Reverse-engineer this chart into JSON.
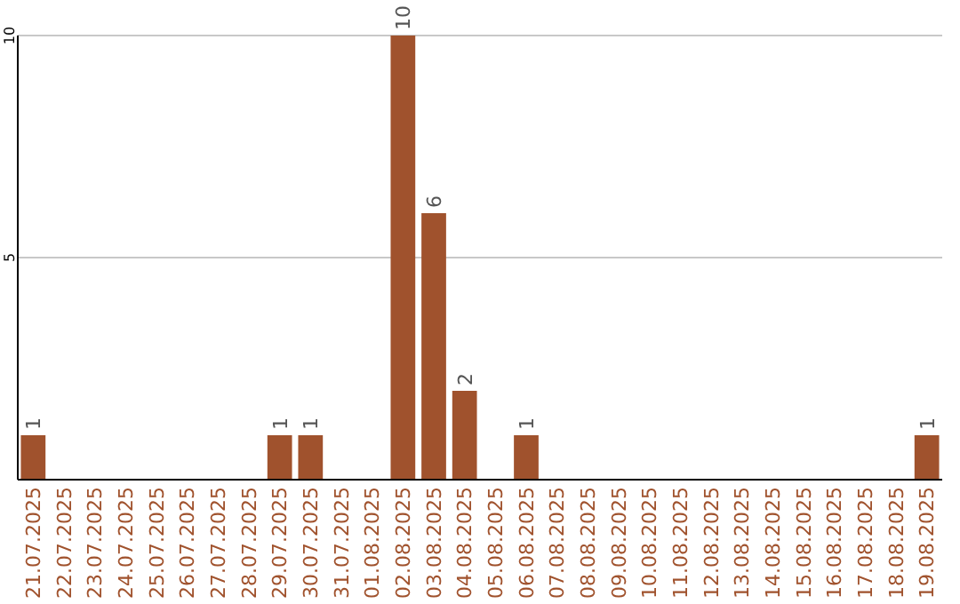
{
  "chart_data": {
    "type": "bar",
    "categories": [
      "21.07.2025",
      "22.07.2025",
      "23.07.2025",
      "24.07.2025",
      "25.07.2025",
      "26.07.2025",
      "27.07.2025",
      "28.07.2025",
      "29.07.2025",
      "30.07.2025",
      "31.07.2025",
      "01.08.2025",
      "02.08.2025",
      "03.08.2025",
      "04.08.2025",
      "05.08.2025",
      "06.08.2025",
      "07.08.2025",
      "08.08.2025",
      "09.08.2025",
      "10.08.2025",
      "11.08.2025",
      "12.08.2025",
      "13.08.2025",
      "14.08.2025",
      "15.08.2025",
      "16.08.2025",
      "17.08.2025",
      "18.08.2025",
      "19.08.2025"
    ],
    "values": [
      1,
      0,
      0,
      0,
      0,
      0,
      0,
      0,
      1,
      1,
      0,
      0,
      10,
      6,
      2,
      0,
      1,
      0,
      0,
      0,
      0,
      0,
      0,
      0,
      0,
      0,
      0,
      0,
      0,
      1
    ],
    "value_labels": [
      "1",
      null,
      null,
      null,
      null,
      null,
      null,
      null,
      "1",
      "1",
      null,
      null,
      "10",
      "6",
      "2",
      null,
      "1",
      null,
      null,
      null,
      null,
      null,
      null,
      null,
      null,
      null,
      null,
      null,
      null,
      "1"
    ],
    "color": "#a0522d",
    "ylim": [
      0,
      10
    ],
    "yticks": [
      5,
      10
    ],
    "grid": "y"
  }
}
